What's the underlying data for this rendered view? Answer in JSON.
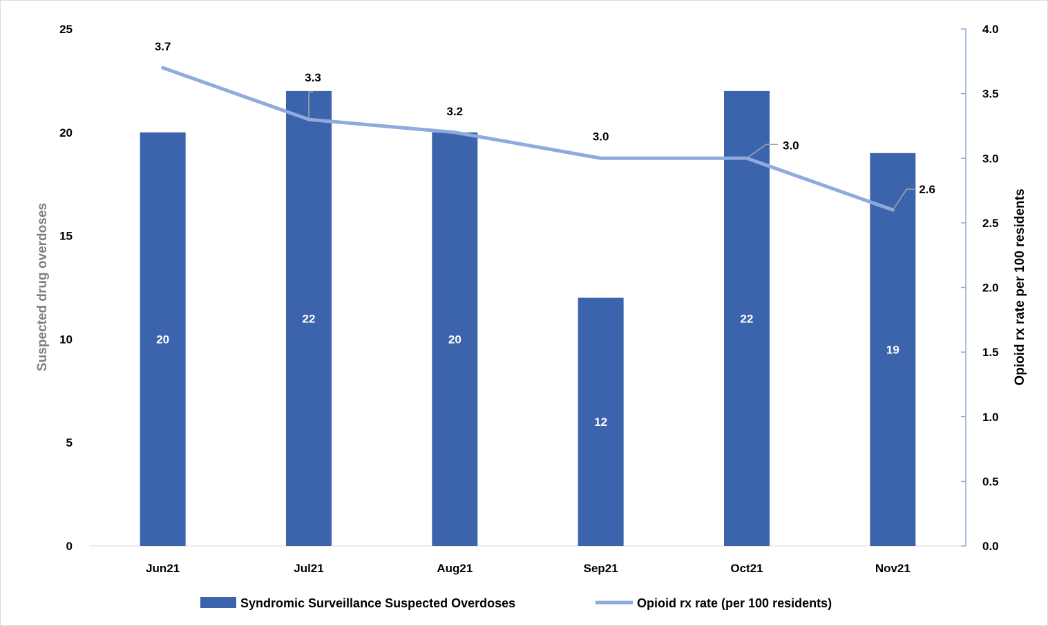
{
  "chart_data": {
    "type": "bar",
    "categories": [
      "Jun21",
      "Jul21",
      "Aug21",
      "Sep21",
      "Oct21",
      "Nov21"
    ],
    "series": [
      {
        "name": "Syndromic Surveillance Suspected Overdoses",
        "type": "bar",
        "axis": "left",
        "values": [
          20,
          22,
          20,
          12,
          22,
          19
        ],
        "color": "#3c64ac"
      },
      {
        "name": "Opioid rx rate (per 100 residents)",
        "type": "line",
        "axis": "right",
        "values": [
          3.7,
          3.3,
          3.2,
          3.0,
          3.0,
          2.6
        ],
        "color": "#8faadc"
      }
    ],
    "bar_labels": [
      "20",
      "22",
      "20",
      "12",
      "22",
      "19"
    ],
    "line_labels": [
      "3.7",
      "3.3",
      "3.2",
      "3.0",
      "3.0",
      "2.6"
    ],
    "ylabel": "Suspected drug overdoses",
    "ylabel_right": "Opioid rx rate per 100 residents",
    "ylim": [
      0,
      25
    ],
    "ylim_right": [
      0,
      4.0
    ],
    "yticks": [
      "0",
      "5",
      "10",
      "15",
      "20",
      "25"
    ],
    "yticks_right": [
      "0.0",
      "0.5",
      "1.0",
      "1.5",
      "2.0",
      "2.5",
      "3.0",
      "3.5",
      "4.0"
    ],
    "grid": false,
    "legend_position": "bottom",
    "axis_color_right": "#8faadc"
  }
}
